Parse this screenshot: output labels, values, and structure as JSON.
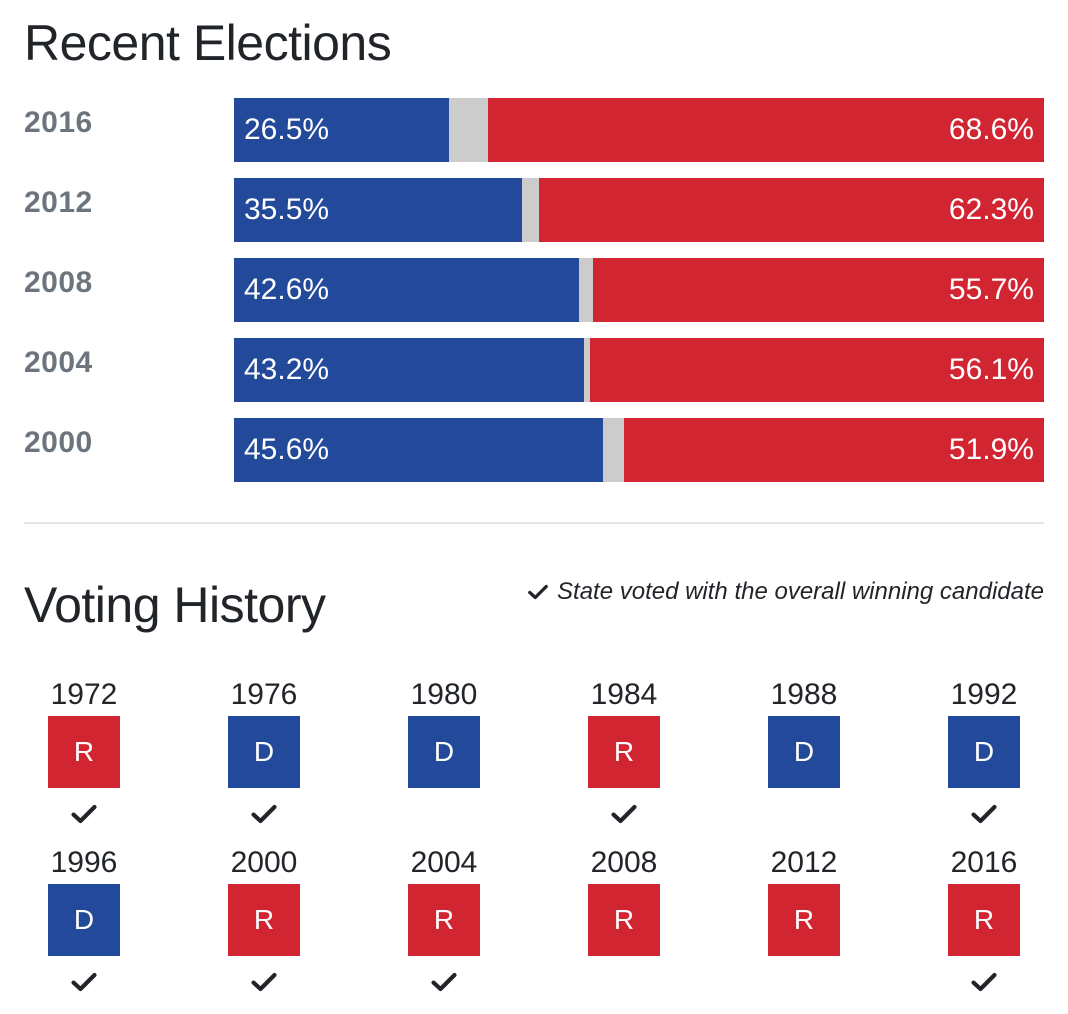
{
  "recent_elections": {
    "title": "Recent Elections",
    "colors": {
      "dem": "#23499a",
      "rep": "#d22532",
      "other": "#cccccc"
    },
    "rows": [
      {
        "year": "2016",
        "dem_pct": 26.5,
        "rep_pct": 68.6,
        "dem_label": "26.5%",
        "rep_label": "68.6%"
      },
      {
        "year": "2012",
        "dem_pct": 35.5,
        "rep_pct": 62.3,
        "dem_label": "35.5%",
        "rep_label": "62.3%"
      },
      {
        "year": "2008",
        "dem_pct": 42.6,
        "rep_pct": 55.7,
        "dem_label": "42.6%",
        "rep_label": "55.7%"
      },
      {
        "year": "2004",
        "dem_pct": 43.2,
        "rep_pct": 56.1,
        "dem_label": "43.2%",
        "rep_label": "56.1%"
      },
      {
        "year": "2000",
        "dem_pct": 45.6,
        "rep_pct": 51.9,
        "dem_label": "45.6%",
        "rep_label": "51.9%"
      }
    ]
  },
  "voting_history": {
    "title": "Voting History",
    "legend": {
      "icon": "check-icon",
      "text": "State voted with the overall winning candidate"
    },
    "entries": [
      {
        "year": "1972",
        "party": "R",
        "with_winner": true
      },
      {
        "year": "1976",
        "party": "D",
        "with_winner": true
      },
      {
        "year": "1980",
        "party": "D",
        "with_winner": false
      },
      {
        "year": "1984",
        "party": "R",
        "with_winner": true
      },
      {
        "year": "1988",
        "party": "D",
        "with_winner": false
      },
      {
        "year": "1992",
        "party": "D",
        "with_winner": true
      },
      {
        "year": "1996",
        "party": "D",
        "with_winner": true
      },
      {
        "year": "2000",
        "party": "R",
        "with_winner": true
      },
      {
        "year": "2004",
        "party": "R",
        "with_winner": true
      },
      {
        "year": "2008",
        "party": "R",
        "with_winner": false
      },
      {
        "year": "2012",
        "party": "R",
        "with_winner": false
      },
      {
        "year": "2016",
        "party": "R",
        "with_winner": true
      }
    ]
  }
}
